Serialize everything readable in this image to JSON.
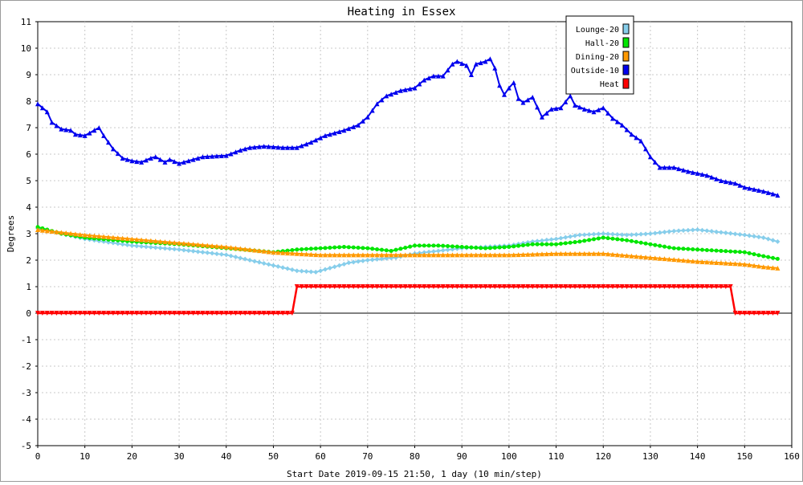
{
  "chart_data": {
    "type": "line",
    "title": "Heating in Essex",
    "xlabel": "Start Date 2019-09-15 21:50, 1 day (10 min/step)",
    "ylabel": "Degrees",
    "xlim": [
      0,
      160
    ],
    "ylim": [
      -5,
      11
    ],
    "xticks": [
      0,
      10,
      20,
      30,
      40,
      50,
      60,
      70,
      80,
      90,
      100,
      110,
      120,
      130,
      140,
      150,
      160
    ],
    "yticks": [
      -5,
      -4,
      -3,
      -2,
      -1,
      0,
      1,
      2,
      3,
      4,
      5,
      6,
      7,
      8,
      9,
      10,
      11
    ],
    "grid": true,
    "legend_position": "top-right",
    "series": [
      {
        "name": "Lounge-20",
        "color": "#87ceeb",
        "marker": "diamond",
        "points": [
          [
            0,
            3.2
          ],
          [
            5,
            3.0
          ],
          [
            10,
            2.8
          ],
          [
            20,
            2.55
          ],
          [
            30,
            2.4
          ],
          [
            40,
            2.2
          ],
          [
            45,
            2.0
          ],
          [
            50,
            1.8
          ],
          [
            55,
            1.6
          ],
          [
            59,
            1.55
          ],
          [
            62,
            1.7
          ],
          [
            66,
            1.9
          ],
          [
            70,
            2.0
          ],
          [
            76,
            2.1
          ],
          [
            80,
            2.25
          ],
          [
            85,
            2.35
          ],
          [
            90,
            2.45
          ],
          [
            95,
            2.5
          ],
          [
            100,
            2.55
          ],
          [
            105,
            2.7
          ],
          [
            110,
            2.8
          ],
          [
            115,
            2.95
          ],
          [
            120,
            3.0
          ],
          [
            125,
            2.95
          ],
          [
            130,
            3.0
          ],
          [
            135,
            3.1
          ],
          [
            140,
            3.15
          ],
          [
            145,
            3.05
          ],
          [
            150,
            2.95
          ],
          [
            154,
            2.85
          ],
          [
            157,
            2.7
          ]
        ]
      },
      {
        "name": "Hall-20",
        "color": "#00e600",
        "marker": "circle",
        "points": [
          [
            0,
            3.25
          ],
          [
            5,
            3.0
          ],
          [
            10,
            2.85
          ],
          [
            20,
            2.7
          ],
          [
            30,
            2.6
          ],
          [
            40,
            2.45
          ],
          [
            50,
            2.3
          ],
          [
            55,
            2.4
          ],
          [
            60,
            2.45
          ],
          [
            65,
            2.5
          ],
          [
            70,
            2.45
          ],
          [
            75,
            2.35
          ],
          [
            80,
            2.55
          ],
          [
            85,
            2.55
          ],
          [
            90,
            2.5
          ],
          [
            95,
            2.45
          ],
          [
            100,
            2.5
          ],
          [
            105,
            2.6
          ],
          [
            110,
            2.6
          ],
          [
            115,
            2.7
          ],
          [
            120,
            2.85
          ],
          [
            125,
            2.75
          ],
          [
            130,
            2.6
          ],
          [
            135,
            2.45
          ],
          [
            140,
            2.4
          ],
          [
            145,
            2.35
          ],
          [
            150,
            2.3
          ],
          [
            154,
            2.15
          ],
          [
            157,
            2.05
          ]
        ]
      },
      {
        "name": "Dining-20",
        "color": "#ff9900",
        "marker": "triangle",
        "points": [
          [
            0,
            3.15
          ],
          [
            5,
            3.05
          ],
          [
            10,
            2.95
          ],
          [
            20,
            2.8
          ],
          [
            30,
            2.65
          ],
          [
            40,
            2.5
          ],
          [
            50,
            2.3
          ],
          [
            55,
            2.25
          ],
          [
            60,
            2.2
          ],
          [
            70,
            2.2
          ],
          [
            80,
            2.2
          ],
          [
            90,
            2.2
          ],
          [
            100,
            2.2
          ],
          [
            110,
            2.25
          ],
          [
            120,
            2.25
          ],
          [
            130,
            2.1
          ],
          [
            140,
            1.95
          ],
          [
            150,
            1.85
          ],
          [
            154,
            1.75
          ],
          [
            157,
            1.7
          ]
        ]
      },
      {
        "name": "Outside-10",
        "color": "#0000ee",
        "marker": "triangle",
        "points": [
          [
            0,
            7.9
          ],
          [
            2,
            7.6
          ],
          [
            3,
            7.2
          ],
          [
            5,
            6.95
          ],
          [
            7,
            6.9
          ],
          [
            8,
            6.75
          ],
          [
            10,
            6.7
          ],
          [
            12,
            6.9
          ],
          [
            13,
            7.0
          ],
          [
            14,
            6.7
          ],
          [
            16,
            6.2
          ],
          [
            18,
            5.85
          ],
          [
            20,
            5.75
          ],
          [
            22,
            5.7
          ],
          [
            24,
            5.85
          ],
          [
            25,
            5.9
          ],
          [
            27,
            5.7
          ],
          [
            28,
            5.8
          ],
          [
            30,
            5.65
          ],
          [
            32,
            5.75
          ],
          [
            35,
            5.9
          ],
          [
            40,
            5.95
          ],
          [
            43,
            6.15
          ],
          [
            45,
            6.25
          ],
          [
            48,
            6.3
          ],
          [
            52,
            6.25
          ],
          [
            55,
            6.25
          ],
          [
            58,
            6.45
          ],
          [
            61,
            6.7
          ],
          [
            65,
            6.9
          ],
          [
            68,
            7.1
          ],
          [
            70,
            7.4
          ],
          [
            72,
            7.9
          ],
          [
            74,
            8.2
          ],
          [
            77,
            8.4
          ],
          [
            80,
            8.5
          ],
          [
            82,
            8.8
          ],
          [
            84,
            8.95
          ],
          [
            86,
            8.95
          ],
          [
            88,
            9.4
          ],
          [
            89,
            9.5
          ],
          [
            91,
            9.35
          ],
          [
            92,
            9.0
          ],
          [
            93,
            9.4
          ],
          [
            95,
            9.5
          ],
          [
            96,
            9.6
          ],
          [
            97,
            9.25
          ],
          [
            98,
            8.6
          ],
          [
            99,
            8.25
          ],
          [
            100,
            8.5
          ],
          [
            101,
            8.7
          ],
          [
            102,
            8.1
          ],
          [
            103,
            7.95
          ],
          [
            105,
            8.15
          ],
          [
            107,
            7.4
          ],
          [
            109,
            7.7
          ],
          [
            111,
            7.75
          ],
          [
            113,
            8.2
          ],
          [
            114,
            7.85
          ],
          [
            116,
            7.7
          ],
          [
            118,
            7.6
          ],
          [
            120,
            7.75
          ],
          [
            122,
            7.35
          ],
          [
            124,
            7.1
          ],
          [
            126,
            6.75
          ],
          [
            128,
            6.5
          ],
          [
            130,
            5.9
          ],
          [
            132,
            5.5
          ],
          [
            135,
            5.5
          ],
          [
            138,
            5.35
          ],
          [
            142,
            5.2
          ],
          [
            145,
            5.0
          ],
          [
            148,
            4.9
          ],
          [
            150,
            4.75
          ],
          [
            154,
            4.6
          ],
          [
            157,
            4.45
          ]
        ]
      },
      {
        "name": "Heat",
        "color": "#ff0000",
        "marker": "triangle-down",
        "points": [
          [
            0,
            0
          ],
          [
            54,
            0
          ],
          [
            55,
            1
          ],
          [
            147,
            1
          ],
          [
            148,
            0
          ],
          [
            157,
            0
          ]
        ]
      }
    ]
  }
}
